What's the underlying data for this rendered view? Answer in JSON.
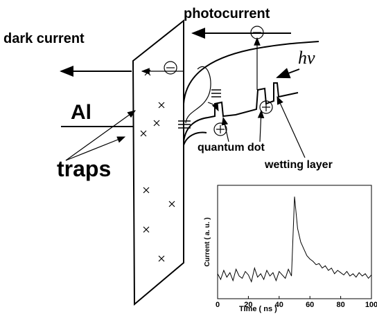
{
  "labels": {
    "photocurrent": "photocurrent",
    "dark_current": "dark current",
    "metal": "Al",
    "photon": "hν",
    "quantum_dot": "quantum dot",
    "wetting_layer": "wetting layer",
    "traps": "traps"
  },
  "chart_data": {
    "type": "line",
    "x_label": "Time ( ns )",
    "y_label": "Current ( a. u. )",
    "x": [
      0,
      2,
      4,
      6,
      8,
      10,
      12,
      14,
      16,
      18,
      20,
      22,
      24,
      26,
      28,
      30,
      32,
      34,
      36,
      38,
      40,
      42,
      44,
      46,
      48,
      50,
      52,
      54,
      56,
      58,
      60,
      62,
      64,
      66,
      68,
      70,
      72,
      74,
      76,
      78,
      80,
      82,
      84,
      86,
      88,
      90,
      92,
      94,
      96,
      98,
      100
    ],
    "values": [
      0.22,
      0.17,
      0.25,
      0.19,
      0.23,
      0.16,
      0.26,
      0.2,
      0.18,
      0.24,
      0.21,
      0.15,
      0.27,
      0.19,
      0.22,
      0.17,
      0.25,
      0.2,
      0.23,
      0.16,
      0.24,
      0.21,
      0.18,
      0.26,
      0.2,
      0.9,
      0.62,
      0.5,
      0.44,
      0.38,
      0.35,
      0.33,
      0.3,
      0.31,
      0.27,
      0.29,
      0.25,
      0.27,
      0.22,
      0.25,
      0.23,
      0.21,
      0.24,
      0.2,
      0.22,
      0.19,
      0.23,
      0.2,
      0.22,
      0.18,
      0.21
    ],
    "color": "#000000",
    "xlim": [
      0,
      100
    ],
    "xticks": [
      0,
      20,
      40,
      60,
      80,
      100
    ],
    "ylim": [
      0,
      1
    ]
  }
}
